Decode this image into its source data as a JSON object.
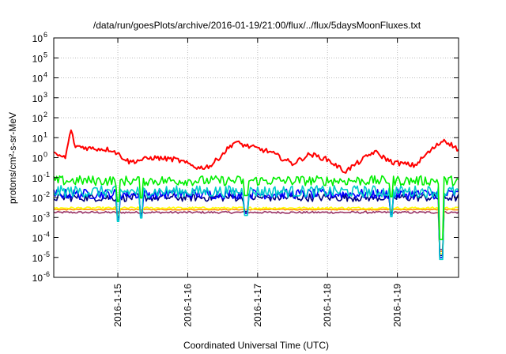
{
  "chart_data": {
    "type": "line",
    "title": "/data/run/goesPlots/archive/2016-01-19/21:00/flux/../flux/5daysMoonFluxes.txt",
    "xlabel": "Coordinated Universal Time (UTC)",
    "ylabel": "protons/cm²-s-sr-MeV",
    "y_scale": "log",
    "ylim": [
      1e-06,
      1000000.0
    ],
    "y_ticks": [
      {
        "exp": -6,
        "label": "10"
      },
      {
        "exp": -5,
        "label": "10"
      },
      {
        "exp": -4,
        "label": "10"
      },
      {
        "exp": -3,
        "label": "10"
      },
      {
        "exp": -2,
        "label": "10"
      },
      {
        "exp": -1,
        "label": "10"
      },
      {
        "exp": 0,
        "label": "10"
      },
      {
        "exp": 1,
        "label": "10"
      },
      {
        "exp": 2,
        "label": "10"
      },
      {
        "exp": 3,
        "label": "10"
      },
      {
        "exp": 4,
        "label": "10"
      },
      {
        "exp": 5,
        "label": "10"
      },
      {
        "exp": 6,
        "label": "10"
      }
    ],
    "y_tick_exponents": [
      "-6",
      "-5",
      "-4",
      "-3",
      "-2",
      "-1",
      "0",
      "1",
      "2",
      "3",
      "4",
      "5",
      "6"
    ],
    "xlim": [
      "2016-01-14T02:00",
      "2016-01-19T21:00"
    ],
    "x_ticks": [
      {
        "t": "2016-01-15T00:00",
        "label": "2016-1-15"
      },
      {
        "t": "2016-01-16T00:00",
        "label": "2016-1-16"
      },
      {
        "t": "2016-01-17T00:00",
        "label": "2016-1-17"
      },
      {
        "t": "2016-01-18T00:00",
        "label": "2016-1-18"
      },
      {
        "t": "2016-01-19T00:00",
        "label": "2016-1-19"
      }
    ],
    "grid": true,
    "series": [
      {
        "color": "#ff0000",
        "base": 0.8,
        "noise": 0.25,
        "knots": [
          [
            "2016-01-14T02:00",
            1.5
          ],
          [
            "2016-01-14T06:00",
            1.0
          ],
          [
            "2016-01-14T08:00",
            30
          ],
          [
            "2016-01-14T09:00",
            4
          ],
          [
            "2016-01-14T14:00",
            3
          ],
          [
            "2016-01-14T22:00",
            2.5
          ],
          [
            "2016-01-15T04:00",
            0.6
          ],
          [
            "2016-01-15T12:00",
            1.0
          ],
          [
            "2016-01-15T20:00",
            0.8
          ],
          [
            "2016-01-16T04:00",
            0.3
          ],
          [
            "2016-01-16T08:00",
            0.4
          ],
          [
            "2016-01-16T16:00",
            6
          ],
          [
            "2016-01-16T20:00",
            4
          ],
          [
            "2016-01-17T04:00",
            2.0
          ],
          [
            "2016-01-17T12:00",
            0.5
          ],
          [
            "2016-01-17T18:00",
            1.5
          ],
          [
            "2016-01-18T00:00",
            0.8
          ],
          [
            "2016-01-18T06:00",
            0.2
          ],
          [
            "2016-01-18T16:00",
            2.0
          ],
          [
            "2016-01-18T22:00",
            0.6
          ],
          [
            "2016-01-19T06:00",
            0.4
          ],
          [
            "2016-01-19T10:00",
            1.5
          ],
          [
            "2016-01-19T16:00",
            8
          ],
          [
            "2016-01-19T21:00",
            2.5
          ]
        ]
      },
      {
        "color": "#00ee00",
        "base": 0.07,
        "noise": 0.5,
        "knots": [
          [
            "2016-01-14T02:00",
            0.07
          ],
          [
            "2016-01-19T21:00",
            0.07
          ]
        ]
      },
      {
        "color": "#00cccc",
        "base": 0.02,
        "noise": 0.6,
        "knots": [
          [
            "2016-01-14T02:00",
            0.02
          ],
          [
            "2016-01-19T21:00",
            0.02
          ]
        ]
      },
      {
        "color": "#0000ff",
        "base": 0.015,
        "noise": 0.5,
        "knots": [
          [
            "2016-01-14T02:00",
            0.015
          ],
          [
            "2016-01-19T21:00",
            0.015
          ]
        ]
      },
      {
        "color": "#000080",
        "base": 0.01,
        "noise": 0.4,
        "knots": [
          [
            "2016-01-14T02:00",
            0.01
          ],
          [
            "2016-01-19T21:00",
            0.01
          ]
        ]
      },
      {
        "color": "#ffff00",
        "base": 0.003,
        "noise": 0.1,
        "knots": [
          [
            "2016-01-14T02:00",
            0.003
          ],
          [
            "2016-01-19T21:00",
            0.003
          ]
        ]
      },
      {
        "color": "#ff8800",
        "base": 0.0025,
        "noise": 0.05,
        "knots": [
          [
            "2016-01-14T02:00",
            0.0025
          ],
          [
            "2016-01-19T21:00",
            0.0025
          ]
        ]
      },
      {
        "color": "#993366",
        "base": 0.0018,
        "noise": 0.1,
        "knots": [
          [
            "2016-01-14T02:00",
            0.0018
          ],
          [
            "2016-01-19T21:00",
            0.0018
          ]
        ]
      }
    ],
    "dips": [
      {
        "t": "2016-01-15T00:00",
        "value": 0.0004
      },
      {
        "t": "2016-01-15T08:00",
        "value": 0.0006
      },
      {
        "t": "2016-01-16T20:00",
        "value": 0.0008
      },
      {
        "t": "2016-01-18T22:00",
        "value": 0.0007
      },
      {
        "t": "2016-01-19T15:00",
        "value": 5e-06
      }
    ]
  }
}
